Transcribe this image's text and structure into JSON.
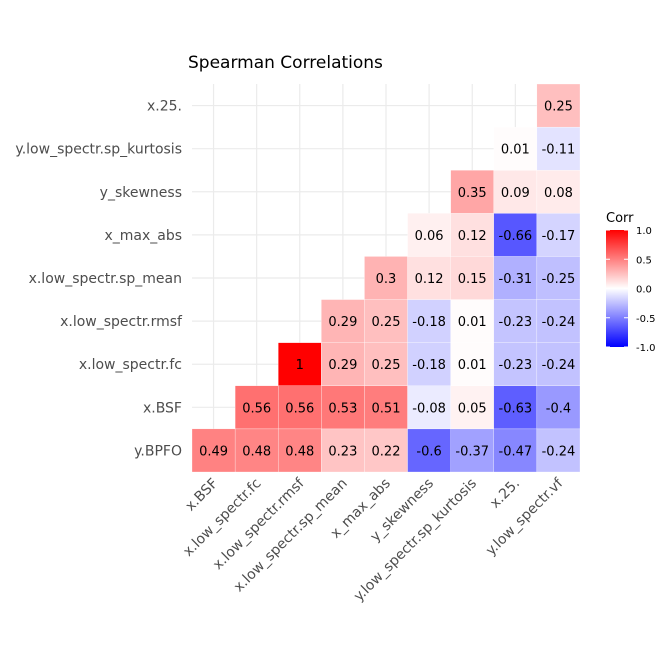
{
  "chart_data": {
    "type": "heatmap",
    "title": "Spearman Correlations",
    "x_labels": [
      "x.BSF",
      "x.low_spectr.fc",
      "x.low_spectr.rmsf",
      "x.low_spectr.sp_mean",
      "x_max_abs",
      "y_skewness",
      "y.low_spectr.sp_kurtosis",
      "x.25.",
      "y.low_spectr.vf"
    ],
    "y_labels": [
      "y.BPFO",
      "x.BSF",
      "x.low_spectr.fc",
      "x.low_spectr.rmsf",
      "x.low_spectr.sp_mean",
      "x_max_abs",
      "y_skewness",
      "y.low_spectr.sp_kurtosis",
      "x.25."
    ],
    "cells": [
      {
        "x": "x.BSF",
        "y": "y.BPFO",
        "value": 0.49
      },
      {
        "x": "x.low_spectr.fc",
        "y": "y.BPFO",
        "value": 0.48
      },
      {
        "x": "x.low_spectr.rmsf",
        "y": "y.BPFO",
        "value": 0.48
      },
      {
        "x": "x.low_spectr.sp_mean",
        "y": "y.BPFO",
        "value": 0.23
      },
      {
        "x": "x_max_abs",
        "y": "y.BPFO",
        "value": 0.22
      },
      {
        "x": "y_skewness",
        "y": "y.BPFO",
        "value": -0.6
      },
      {
        "x": "y.low_spectr.sp_kurtosis",
        "y": "y.BPFO",
        "value": -0.37
      },
      {
        "x": "x.25.",
        "y": "y.BPFO",
        "value": -0.47
      },
      {
        "x": "y.low_spectr.vf",
        "y": "y.BPFO",
        "value": -0.24
      },
      {
        "x": "x.low_spectr.fc",
        "y": "x.BSF",
        "value": 0.56
      },
      {
        "x": "x.low_spectr.rmsf",
        "y": "x.BSF",
        "value": 0.56
      },
      {
        "x": "x.low_spectr.sp_mean",
        "y": "x.BSF",
        "value": 0.53
      },
      {
        "x": "x_max_abs",
        "y": "x.BSF",
        "value": 0.51
      },
      {
        "x": "y_skewness",
        "y": "x.BSF",
        "value": -0.08
      },
      {
        "x": "y.low_spectr.sp_kurtosis",
        "y": "x.BSF",
        "value": 0.05
      },
      {
        "x": "x.25.",
        "y": "x.BSF",
        "value": -0.63
      },
      {
        "x": "y.low_spectr.vf",
        "y": "x.BSF",
        "value": -0.4
      },
      {
        "x": "x.low_spectr.rmsf",
        "y": "x.low_spectr.fc",
        "value": 1
      },
      {
        "x": "x.low_spectr.sp_mean",
        "y": "x.low_spectr.fc",
        "value": 0.29
      },
      {
        "x": "x_max_abs",
        "y": "x.low_spectr.fc",
        "value": 0.25
      },
      {
        "x": "y_skewness",
        "y": "x.low_spectr.fc",
        "value": -0.18
      },
      {
        "x": "y.low_spectr.sp_kurtosis",
        "y": "x.low_spectr.fc",
        "value": 0.01
      },
      {
        "x": "x.25.",
        "y": "x.low_spectr.fc",
        "value": -0.23
      },
      {
        "x": "y.low_spectr.vf",
        "y": "x.low_spectr.fc",
        "value": -0.24
      },
      {
        "x": "x.low_spectr.sp_mean",
        "y": "x.low_spectr.rmsf",
        "value": 0.29
      },
      {
        "x": "x_max_abs",
        "y": "x.low_spectr.rmsf",
        "value": 0.25
      },
      {
        "x": "y_skewness",
        "y": "x.low_spectr.rmsf",
        "value": -0.18
      },
      {
        "x": "y.low_spectr.sp_kurtosis",
        "y": "x.low_spectr.rmsf",
        "value": 0.01
      },
      {
        "x": "x.25.",
        "y": "x.low_spectr.rmsf",
        "value": -0.23
      },
      {
        "x": "y.low_spectr.vf",
        "y": "x.low_spectr.rmsf",
        "value": -0.24
      },
      {
        "x": "x_max_abs",
        "y": "x.low_spectr.sp_mean",
        "value": 0.3
      },
      {
        "x": "y_skewness",
        "y": "x.low_spectr.sp_mean",
        "value": 0.12
      },
      {
        "x": "y.low_spectr.sp_kurtosis",
        "y": "x.low_spectr.sp_mean",
        "value": 0.15
      },
      {
        "x": "x.25.",
        "y": "x.low_spectr.sp_mean",
        "value": -0.31
      },
      {
        "x": "y.low_spectr.vf",
        "y": "x.low_spectr.sp_mean",
        "value": -0.25
      },
      {
        "x": "y_skewness",
        "y": "x_max_abs",
        "value": 0.06
      },
      {
        "x": "y.low_spectr.sp_kurtosis",
        "y": "x_max_abs",
        "value": 0.12
      },
      {
        "x": "x.25.",
        "y": "x_max_abs",
        "value": -0.66
      },
      {
        "x": "y.low_spectr.vf",
        "y": "x_max_abs",
        "value": -0.17
      },
      {
        "x": "y.low_spectr.sp_kurtosis",
        "y": "y_skewness",
        "value": 0.35
      },
      {
        "x": "x.25.",
        "y": "y_skewness",
        "value": 0.09
      },
      {
        "x": "y.low_spectr.vf",
        "y": "y_skewness",
        "value": 0.08
      },
      {
        "x": "x.25.",
        "y": "y.low_spectr.sp_kurtosis",
        "value": 0.01
      },
      {
        "x": "y.low_spectr.vf",
        "y": "y.low_spectr.sp_kurtosis",
        "value": -0.11
      },
      {
        "x": "y.low_spectr.vf",
        "y": "x.25.",
        "value": 0.25
      }
    ],
    "color_scale": {
      "low": "#0000ff",
      "mid": "#ffffff",
      "high": "#ff0000",
      "limits": [
        -1,
        1
      ]
    },
    "legend": {
      "title": "Corr",
      "ticks": [
        1.0,
        0.5,
        0.0,
        -0.5,
        -1.0
      ],
      "tick_labels": [
        "1.0",
        "0.5",
        "0.0",
        "-0.5",
        "-1.0"
      ],
      "position": "right"
    },
    "grid": true
  }
}
